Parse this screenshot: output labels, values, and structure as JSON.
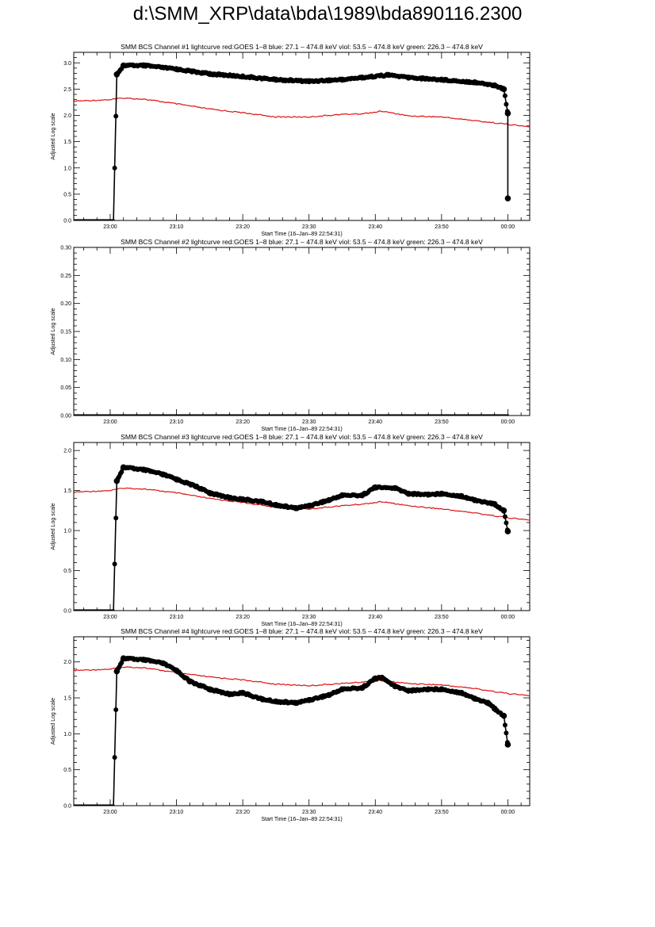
{
  "page": {
    "title": "d:\\SMM_XRP\\data\\bda\\1989\\bda890116.2300"
  },
  "colors": {
    "goes": "#dd1111",
    "bcs": "#000000",
    "frame": "#000000"
  },
  "chart_data": [
    {
      "type": "line",
      "title": "SMM BCS Channel #1 lightcurve  red:GOES 1–8  blue: 27.1 – 474.8 keV  viol: 53.5 – 474.8 keV  green: 226.3 – 474.8 keV",
      "xlabel": "Start Time (16–Jan–89 22:54:31)",
      "ylabel": "Adjusted Log scale",
      "xlim": [
        -5.5,
        63.3
      ],
      "ylim": [
        0,
        3.2
      ],
      "x_ticks": [
        0,
        10,
        20,
        30,
        40,
        50,
        60
      ],
      "x_tick_labels": [
        "23:00",
        "23:10",
        "23:20",
        "23:30",
        "23:40",
        "23:50",
        "00:00"
      ],
      "y_ticks": [
        0,
        0.5,
        1.0,
        1.5,
        2.0,
        2.5,
        3.0
      ],
      "y_tick_labels": [
        "0.0",
        "0.5",
        "1.0",
        "1.5",
        "2.0",
        "2.5",
        "3.0"
      ],
      "series": [
        {
          "color": "#000000",
          "style": "markers",
          "x": [
            -5.5,
            0.5,
            1.0,
            2.0,
            5,
            10,
            15,
            20,
            25,
            30,
            35,
            38,
            42,
            45,
            50,
            55,
            58,
            59.4,
            60.0,
            60.0
          ],
          "y": [
            0,
            0,
            2.78,
            2.95,
            2.95,
            2.88,
            2.79,
            2.74,
            2.68,
            2.65,
            2.68,
            2.72,
            2.77,
            2.72,
            2.68,
            2.63,
            2.57,
            2.5,
            2.04,
            0.42
          ]
        },
        {
          "color": "#dd1111",
          "style": "line",
          "x": [
            -5.5,
            0,
            2,
            5,
            10,
            15,
            20,
            25,
            30,
            35,
            38,
            41,
            45,
            50,
            55,
            60,
            63.3
          ],
          "y": [
            2.27,
            2.3,
            2.33,
            2.31,
            2.22,
            2.12,
            2.05,
            1.97,
            1.97,
            2.02,
            2.03,
            2.08,
            1.99,
            1.97,
            1.9,
            1.83,
            1.78
          ]
        }
      ]
    },
    {
      "type": "line",
      "title": "SMM BCS Channel #2 lightcurve  red:GOES 1–8  blue: 27.1 – 474.8 keV  viol: 53.5 – 474.8 keV  green: 226.3 – 474.8 keV",
      "xlabel": "Start Time (16–Jan–89 22:54:31)",
      "ylabel": "Adjusted Log scale",
      "xlim": [
        -5.5,
        63.3
      ],
      "ylim": [
        0,
        0.3
      ],
      "x_ticks": [
        0,
        10,
        20,
        30,
        40,
        50,
        60
      ],
      "x_tick_labels": [
        "23:00",
        "23:10",
        "23:20",
        "23:30",
        "23:40",
        "23:50",
        "00:00"
      ],
      "y_ticks": [
        0,
        0.05,
        0.1,
        0.15,
        0.2,
        0.25,
        0.3
      ],
      "y_tick_labels": [
        "0.00",
        "0.05",
        "0.10",
        "0.15",
        "0.20",
        "0.25",
        "0.30"
      ],
      "series": [
        {
          "color": "#000000",
          "style": "markers",
          "x": [
            -5.5,
            0,
            10,
            20,
            30,
            40,
            50,
            60
          ],
          "y": [
            0,
            0,
            0,
            0,
            0,
            0,
            0,
            0
          ]
        }
      ]
    },
    {
      "type": "line",
      "title": "SMM BCS Channel #3 lightcurve  red:GOES 1–8  blue: 27.1 – 474.8 keV  viol: 53.5 – 474.8 keV  green: 226.3 – 474.8 keV",
      "xlabel": "Start Time (16–Jan–89 22:54:31)",
      "ylabel": "Adjusted Log scale",
      "xlim": [
        -5.5,
        63.3
      ],
      "ylim": [
        0,
        2.1
      ],
      "x_ticks": [
        0,
        10,
        20,
        30,
        40,
        50,
        60
      ],
      "x_tick_labels": [
        "23:00",
        "23:10",
        "23:20",
        "23:30",
        "23:40",
        "23:50",
        "00:00"
      ],
      "y_ticks": [
        0,
        0.5,
        1.0,
        1.5,
        2.0
      ],
      "y_tick_labels": [
        "0.0",
        "0.5",
        "1.0",
        "1.5",
        "2.0"
      ],
      "series": [
        {
          "color": "#000000",
          "style": "markers",
          "x": [
            -5.5,
            0.5,
            1.0,
            2.0,
            5,
            8,
            10,
            13,
            15,
            18,
            20,
            23,
            25,
            28,
            30,
            33,
            35,
            38,
            40,
            43,
            45,
            48,
            50,
            53,
            55,
            58,
            59.4,
            60.0
          ],
          "y": [
            0,
            0,
            1.62,
            1.79,
            1.76,
            1.7,
            1.64,
            1.55,
            1.47,
            1.41,
            1.39,
            1.36,
            1.32,
            1.28,
            1.31,
            1.38,
            1.44,
            1.44,
            1.54,
            1.53,
            1.46,
            1.45,
            1.46,
            1.43,
            1.38,
            1.33,
            1.25,
            0.99
          ]
        },
        {
          "color": "#dd1111",
          "style": "line",
          "x": [
            -5.5,
            0,
            2,
            5,
            10,
            15,
            20,
            25,
            30,
            35,
            38,
            41,
            45,
            50,
            55,
            60,
            63.3
          ],
          "y": [
            1.48,
            1.5,
            1.53,
            1.52,
            1.47,
            1.4,
            1.35,
            1.29,
            1.27,
            1.31,
            1.33,
            1.36,
            1.31,
            1.27,
            1.22,
            1.16,
            1.13
          ]
        }
      ]
    },
    {
      "type": "line",
      "title": "SMM BCS Channel #4 lightcurve  red:GOES 1–8  blue: 27.1 – 474.8 keV  viol: 53.5 – 474.8 keV  green: 226.3 – 474.8 keV",
      "xlabel": "Start Time (16–Jan–89 22:54:31)",
      "ylabel": "Adjusted Log scale",
      "xlim": [
        -5.5,
        63.3
      ],
      "ylim": [
        0,
        2.35
      ],
      "x_ticks": [
        0,
        10,
        20,
        30,
        40,
        50,
        60
      ],
      "x_tick_labels": [
        "23:00",
        "23:10",
        "23:20",
        "23:30",
        "23:40",
        "23:50",
        "00:00"
      ],
      "y_ticks": [
        0,
        0.5,
        1.0,
        1.5,
        2.0
      ],
      "y_tick_labels": [
        "0.0",
        "0.5",
        "1.0",
        "1.5",
        "2.0"
      ],
      "series": [
        {
          "color": "#000000",
          "style": "markers",
          "x": [
            -5.5,
            0.5,
            1.0,
            2.0,
            5,
            8,
            10,
            12,
            15,
            18,
            20,
            23,
            25,
            28,
            30,
            33,
            35,
            38,
            40,
            41,
            43,
            45,
            48,
            50,
            53,
            55,
            57,
            58,
            59.4,
            60.0
          ],
          "y": [
            0,
            0,
            1.87,
            2.05,
            2.03,
            1.98,
            1.88,
            1.73,
            1.62,
            1.55,
            1.57,
            1.48,
            1.45,
            1.43,
            1.47,
            1.54,
            1.62,
            1.64,
            1.77,
            1.78,
            1.66,
            1.6,
            1.62,
            1.62,
            1.57,
            1.49,
            1.43,
            1.35,
            1.25,
            0.85
          ]
        },
        {
          "color": "#dd1111",
          "style": "line",
          "x": [
            -5.5,
            0,
            2,
            5,
            10,
            15,
            20,
            25,
            30,
            35,
            38,
            41,
            45,
            50,
            55,
            60,
            63.3
          ],
          "y": [
            1.88,
            1.9,
            1.93,
            1.92,
            1.85,
            1.79,
            1.75,
            1.69,
            1.67,
            1.7,
            1.72,
            1.74,
            1.7,
            1.68,
            1.63,
            1.56,
            1.53
          ]
        }
      ]
    }
  ]
}
